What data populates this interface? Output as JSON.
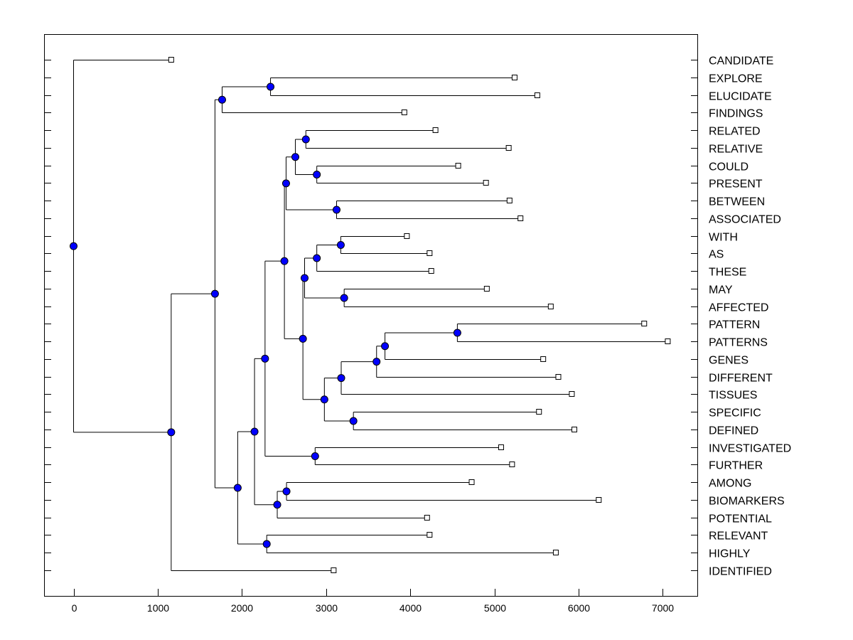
{
  "chart_data": {
    "type": "dendrogram",
    "title": "",
    "xlabel": "",
    "ylabel": "",
    "xlim": [
      -350,
      7450
    ],
    "xticks": [
      0,
      1000,
      2000,
      3000,
      4000,
      5000,
      6000,
      7000
    ],
    "grid": false,
    "colors": {
      "node": "#0000ff",
      "line": "#000000",
      "leaf_marker": "#ffffff"
    },
    "leaves": [
      {
        "label": "CANDIDATE",
        "value": 1160
      },
      {
        "label": "EXPLORE",
        "value": 5240
      },
      {
        "label": "ELUCIDATE",
        "value": 5510
      },
      {
        "label": "FINDINGS",
        "value": 3930
      },
      {
        "label": "RELATED",
        "value": 4300
      },
      {
        "label": "RELATIVE",
        "value": 5170
      },
      {
        "label": "COULD",
        "value": 4570
      },
      {
        "label": "PRESENT",
        "value": 4900
      },
      {
        "label": "BETWEEN",
        "value": 5180
      },
      {
        "label": "ASSOCIATED",
        "value": 5310
      },
      {
        "label": "WITH",
        "value": 3960
      },
      {
        "label": "AS",
        "value": 4230
      },
      {
        "label": "THESE",
        "value": 4250
      },
      {
        "label": "MAY",
        "value": 4910
      },
      {
        "label": "AFFECTED",
        "value": 5670
      },
      {
        "label": "PATTERN",
        "value": 6780
      },
      {
        "label": "PATTERNS",
        "value": 7060
      },
      {
        "label": "GENES",
        "value": 5580
      },
      {
        "label": "DIFFERENT",
        "value": 5760
      },
      {
        "label": "TISSUES",
        "value": 5920
      },
      {
        "label": "SPECIFIC",
        "value": 5530
      },
      {
        "label": "DEFINED",
        "value": 5950
      },
      {
        "label": "INVESTIGATED",
        "value": 5080
      },
      {
        "label": "FURTHER",
        "value": 5210
      },
      {
        "label": "AMONG",
        "value": 4730
      },
      {
        "label": "BIOMARKERS",
        "value": 6240
      },
      {
        "label": "POTENTIAL",
        "value": 4200
      },
      {
        "label": "RELEVANT",
        "value": 4230
      },
      {
        "label": "HIGHLY",
        "value": 5730
      },
      {
        "label": "IDENTIFIED",
        "value": 3090
      }
    ],
    "nodes": [
      {
        "id": "root",
        "height": 0,
        "children": [
          "CANDIDATE",
          "A"
        ]
      },
      {
        "id": "A",
        "height": 1160,
        "children": [
          "B",
          "IDENTIFIED"
        ]
      },
      {
        "id": "B",
        "height": 1680,
        "children": [
          "C",
          "D"
        ]
      },
      {
        "id": "C",
        "height": 1765,
        "children": [
          "E",
          "FINDINGS"
        ]
      },
      {
        "id": "E",
        "height": 2340,
        "children": [
          "EXPLORE",
          "ELUCIDATE"
        ]
      },
      {
        "id": "D",
        "height": 1950,
        "children": [
          "F",
          "G"
        ]
      },
      {
        "id": "G",
        "height": 2295,
        "children": [
          "RELEVANT",
          "HIGHLY"
        ]
      },
      {
        "id": "F",
        "height": 2150,
        "children": [
          "H",
          "I"
        ]
      },
      {
        "id": "I",
        "height": 2420,
        "children": [
          "J",
          "POTENTIAL"
        ]
      },
      {
        "id": "J",
        "height": 2530,
        "children": [
          "AMONG",
          "BIOMARKERS"
        ]
      },
      {
        "id": "H",
        "height": 2275,
        "children": [
          "K",
          "L"
        ]
      },
      {
        "id": "L",
        "height": 2870,
        "children": [
          "INVESTIGATED",
          "FURTHER"
        ]
      },
      {
        "id": "K",
        "height": 2505,
        "children": [
          "M",
          "N"
        ]
      },
      {
        "id": "M",
        "height": 2525,
        "children": [
          "O",
          "P"
        ]
      },
      {
        "id": "O",
        "height": 2635,
        "children": [
          "Q",
          "R"
        ]
      },
      {
        "id": "Q",
        "height": 2760,
        "children": [
          "RELATED",
          "RELATIVE"
        ]
      },
      {
        "id": "R",
        "height": 2890,
        "children": [
          "COULD",
          "PRESENT"
        ]
      },
      {
        "id": "P",
        "height": 3125,
        "children": [
          "BETWEEN",
          "ASSOCIATED"
        ]
      },
      {
        "id": "N",
        "height": 2725,
        "children": [
          "S",
          "T"
        ]
      },
      {
        "id": "S",
        "height": 2745,
        "children": [
          "U",
          "V"
        ]
      },
      {
        "id": "U",
        "height": 2890,
        "children": [
          "W",
          "THESE"
        ]
      },
      {
        "id": "W",
        "height": 3175,
        "children": [
          "WITH",
          "AS"
        ]
      },
      {
        "id": "V",
        "height": 3215,
        "children": [
          "MAY",
          "AFFECTED"
        ]
      },
      {
        "id": "T",
        "height": 2980,
        "children": [
          "X2",
          "Y"
        ]
      },
      {
        "id": "X2",
        "height": 3180,
        "children": [
          "X",
          "TISSUES"
        ]
      },
      {
        "id": "X",
        "height": 3600,
        "children": [
          "Z",
          "DIFFERENT"
        ]
      },
      {
        "id": "Z",
        "height": 3700,
        "children": [
          "PP",
          "GENES"
        ]
      },
      {
        "id": "PP",
        "height": 4560,
        "children": [
          "PATTERN",
          "PATTERNS"
        ]
      },
      {
        "id": "Y",
        "height": 3325,
        "children": [
          "SPECIFIC",
          "DEFINED"
        ]
      }
    ]
  }
}
